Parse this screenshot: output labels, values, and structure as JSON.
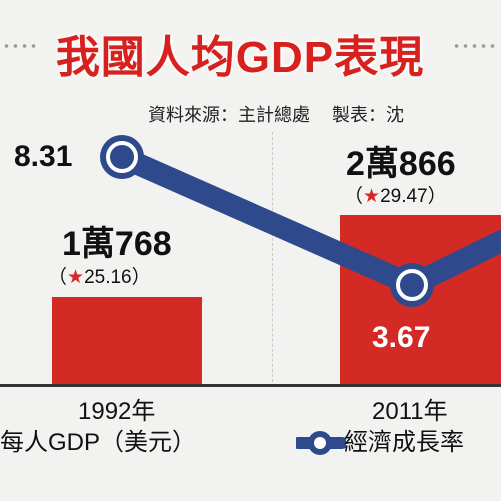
{
  "header": {
    "title": "我國人均GDP表現",
    "source_label": "資料來源：主計總處",
    "maker_label": "製表：沈"
  },
  "legend": {
    "bar_series": "每人GDP（美元）",
    "line_series": "經濟成長率"
  },
  "colors": {
    "title": "#d6211f",
    "bar": "#d42a25",
    "line": "#2e4a8c",
    "marker_fill": "#ffffff"
  },
  "chart_data": {
    "type": "bar",
    "categories": [
      "1992年",
      "2011年"
    ],
    "series": [
      {
        "name": "每人GDP（美元）",
        "type": "bar",
        "values": [
          10768,
          20866
        ],
        "value_labels": [
          "1萬768",
          "2萬866"
        ],
        "growth_notes": [
          "（★25.16）",
          "（★29.47）"
        ]
      },
      {
        "name": "經濟成長率",
        "type": "line",
        "values": [
          8.31,
          3.67
        ],
        "value_labels": [
          "8.31",
          "3.67"
        ]
      }
    ],
    "legend_position": "bottom",
    "grid": false
  }
}
